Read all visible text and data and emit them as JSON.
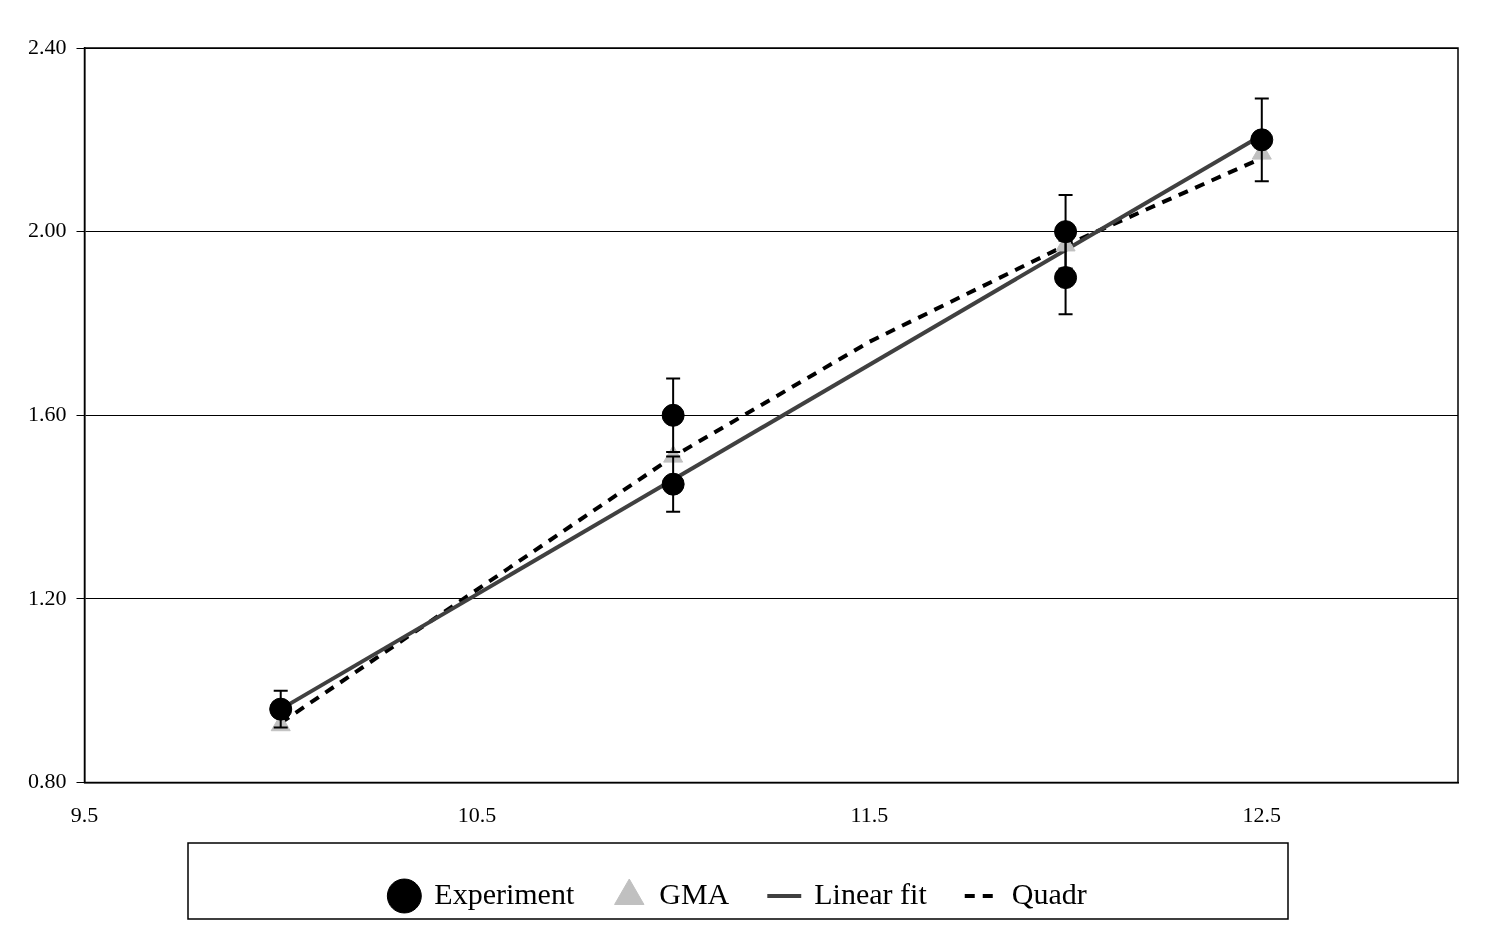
{
  "chart_data": {
    "type": "scatter",
    "xlim": [
      9.5,
      13.0
    ],
    "xticks": [
      9.5,
      10.5,
      11.5,
      12.5
    ],
    "ylim": [
      0.8,
      2.4
    ],
    "yticks": [
      {
        "value": 0.8,
        "label": "0.80"
      },
      {
        "value": 1.2,
        "label": "1.20"
      },
      {
        "value": 1.6,
        "label": "1.60"
      },
      {
        "value": 2.0,
        "label": "2.00"
      },
      {
        "value": 2.4,
        "label": "2.40"
      }
    ],
    "grid": "y",
    "legend": "bottom",
    "series": [
      {
        "name": "Experiment",
        "type": "scatter",
        "marker": "circle",
        "color": "#000000",
        "x": [
          10.0,
          11.0,
          11.0,
          12.0,
          12.0,
          12.5
        ],
        "values": [
          0.96,
          1.6,
          1.45,
          2.0,
          1.9,
          2.2
        ],
        "errors": [
          0.04,
          0.08,
          0.06,
          0.08,
          0.08,
          0.09
        ]
      },
      {
        "name": "GMA",
        "type": "scatter",
        "marker": "triangle",
        "color": "#c0c0c0",
        "x": [
          10.0,
          11.0,
          12.0,
          12.5
        ],
        "values": [
          0.925,
          1.51,
          1.97,
          2.17
        ]
      },
      {
        "name": "Linear fit",
        "type": "line",
        "marker": "none",
        "line_style": "solid",
        "color": "#404040",
        "x": [
          10.0,
          12.5
        ],
        "values": [
          0.96,
          2.21
        ]
      },
      {
        "name": "Quadr",
        "type": "line",
        "marker": "none",
        "line_style": "dashed",
        "color": "#000000",
        "x": [
          10.0,
          10.5,
          11.0,
          11.5,
          12.0,
          12.5
        ],
        "values": [
          0.93,
          1.22,
          1.51,
          1.76,
          1.97,
          2.16
        ]
      }
    ]
  }
}
